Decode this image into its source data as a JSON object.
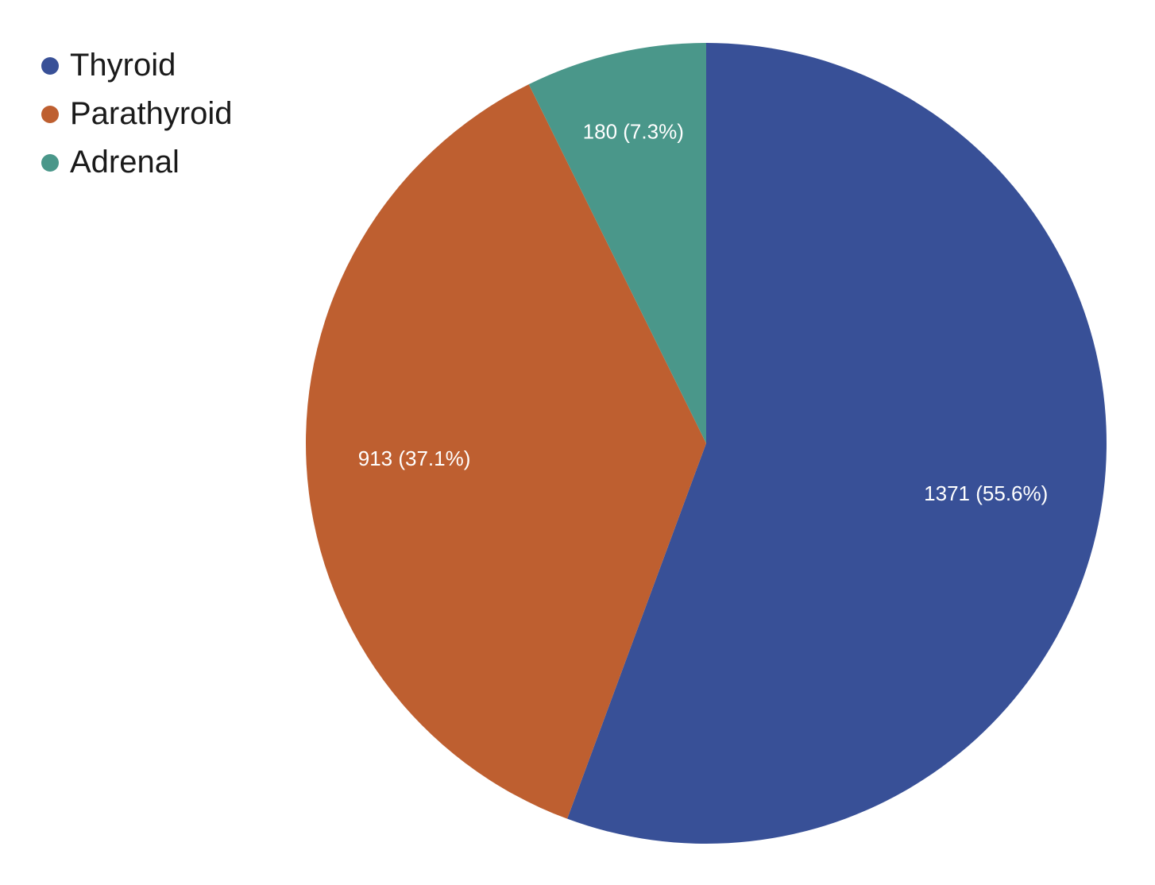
{
  "chart_data": {
    "type": "pie",
    "title": "",
    "start_angle": "top, clockwise",
    "legend_position": "top-left",
    "slices": [
      {
        "label": "Thyroid",
        "value": 1371,
        "percent": 55.6,
        "data_label": "1371 (55.6%)",
        "color": "#385097"
      },
      {
        "label": "Parathyroid",
        "value": 913,
        "percent": 37.1,
        "data_label": "913 (37.1%)",
        "color": "#BE5F30"
      },
      {
        "label": "Adrenal",
        "value": 180,
        "percent": 7.3,
        "data_label": "180 (7.3%)",
        "color": "#4A978A"
      }
    ]
  }
}
